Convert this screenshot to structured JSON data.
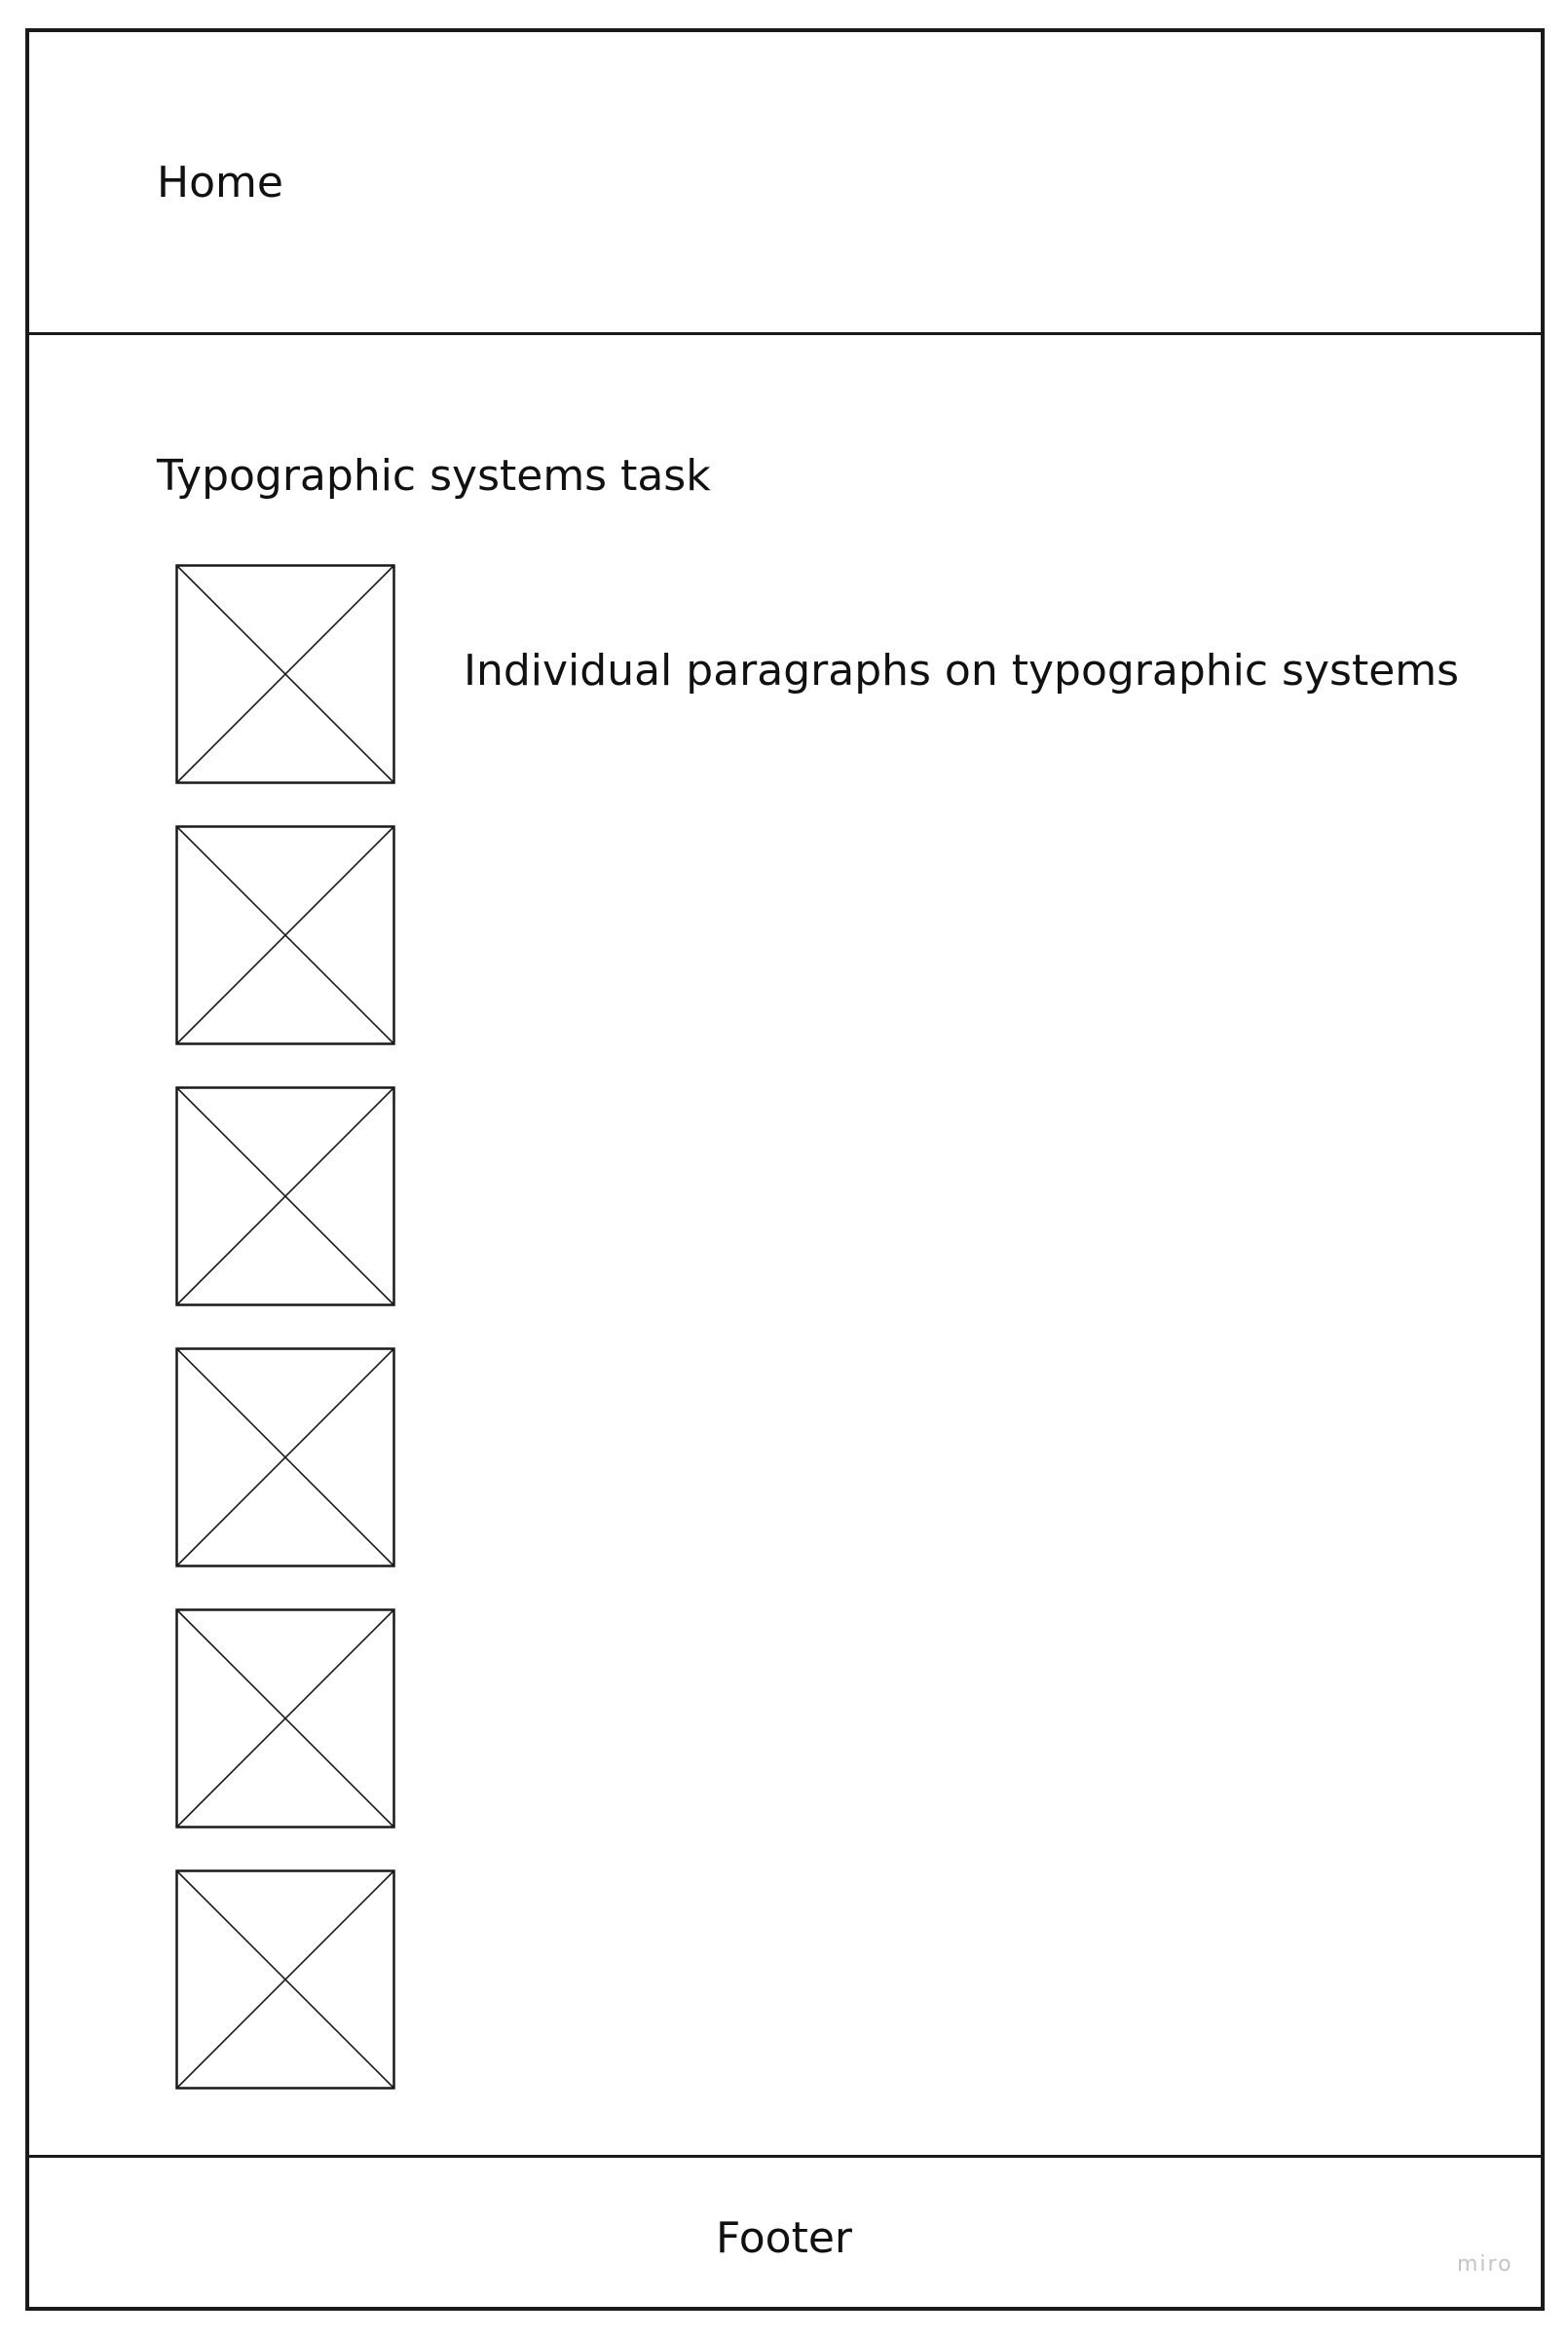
{
  "header": {
    "nav_label": "Home"
  },
  "main": {
    "title": "Typographic systems task",
    "paragraph_label": "Individual paragraphs on typographic systems",
    "placeholders": [
      {
        "icon": "image-placeholder-icon"
      },
      {
        "icon": "image-placeholder-icon"
      },
      {
        "icon": "image-placeholder-icon"
      },
      {
        "icon": "image-placeholder-icon"
      },
      {
        "icon": "image-placeholder-icon"
      },
      {
        "icon": "image-placeholder-icon"
      }
    ]
  },
  "footer": {
    "label": "Footer"
  },
  "watermark": {
    "label": "miro"
  },
  "colors": {
    "line": "#1a1a1a",
    "watermark": "#c4c4c4"
  }
}
